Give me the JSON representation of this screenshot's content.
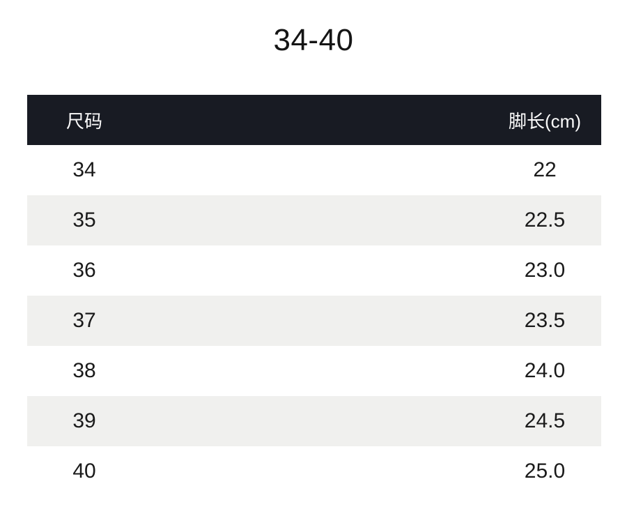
{
  "page": {
    "title": "34-40"
  },
  "table": {
    "columns": [
      {
        "label": "尺码"
      },
      {
        "label": "脚长(cm)"
      }
    ],
    "rows": [
      {
        "size": "34",
        "foot_length": "22"
      },
      {
        "size": "35",
        "foot_length": "22.5"
      },
      {
        "size": "36",
        "foot_length": "23.0"
      },
      {
        "size": "37",
        "foot_length": "23.5"
      },
      {
        "size": "38",
        "foot_length": "24.0"
      },
      {
        "size": "39",
        "foot_length": "24.5"
      },
      {
        "size": "40",
        "foot_length": "25.0"
      }
    ]
  },
  "colors": {
    "header_bg": "#181b23",
    "header_text": "#fbfbfb",
    "row_alt_bg": "#f0f0ee",
    "body_text": "#1a1a1a",
    "page_bg": "#ffffff"
  }
}
